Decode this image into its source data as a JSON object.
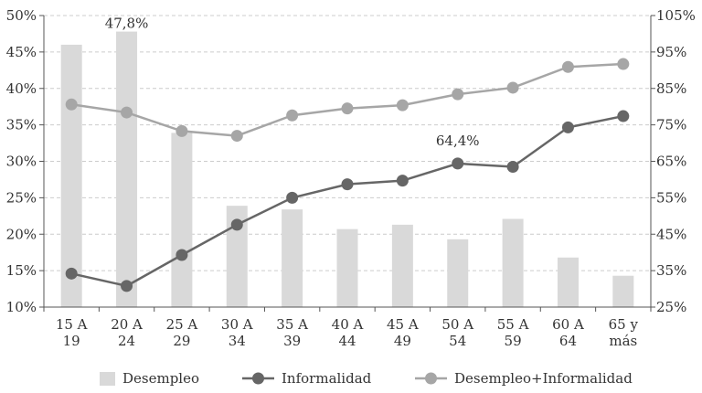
{
  "chart_data": {
    "type": "bar",
    "categories": [
      [
        "15 A",
        "19"
      ],
      [
        "20 A",
        "24"
      ],
      [
        "25 A",
        "29"
      ],
      [
        "30 A",
        "34"
      ],
      [
        "35 A",
        "39"
      ],
      [
        "40 A",
        "44"
      ],
      [
        "45 A",
        "49"
      ],
      [
        "50 A",
        "54"
      ],
      [
        "55 A",
        "59"
      ],
      [
        "60 A",
        "64"
      ],
      [
        "65 y",
        "más"
      ]
    ],
    "series": [
      {
        "name": "Desempleo",
        "kind": "bar",
        "axis": "left",
        "color": "#d9d9d9",
        "values": [
          46.0,
          47.8,
          33.9,
          23.9,
          23.4,
          20.7,
          21.3,
          19.3,
          22.1,
          16.8,
          14.3
        ]
      },
      {
        "name": "Informalidad",
        "kind": "line",
        "axis": "right",
        "color": "#666666",
        "values": [
          34.2,
          30.8,
          39.3,
          47.6,
          55.0,
          58.7,
          59.7,
          64.4,
          63.5,
          74.3,
          77.4
        ]
      },
      {
        "name": "Desempleo+Informalidad",
        "kind": "line",
        "axis": "right",
        "color": "#a6a6a6",
        "values": [
          80.6,
          78.4,
          73.3,
          72.0,
          77.6,
          79.5,
          80.4,
          83.4,
          85.2,
          90.9,
          91.7
        ]
      }
    ],
    "left_axis": {
      "min": 10,
      "max": 50,
      "ticks": [
        "10%",
        "15%",
        "20%",
        "25%",
        "30%",
        "35%",
        "40%",
        "45%",
        "50%"
      ],
      "tick_values": [
        10,
        15,
        20,
        25,
        30,
        35,
        40,
        45,
        50
      ]
    },
    "right_axis": {
      "min": 25,
      "max": 105,
      "ticks": [
        "25%",
        "35%",
        "45%",
        "55%",
        "65%",
        "75%",
        "85%",
        "95%",
        "105%"
      ],
      "tick_values": [
        25,
        35,
        45,
        55,
        65,
        75,
        85,
        95,
        105
      ]
    },
    "annotations": [
      {
        "text": "47,8%",
        "series": 0,
        "index": 1
      },
      {
        "text": "64,4%",
        "series": 1,
        "index": 7
      }
    ],
    "grid": true,
    "legend_position": "bottom"
  }
}
